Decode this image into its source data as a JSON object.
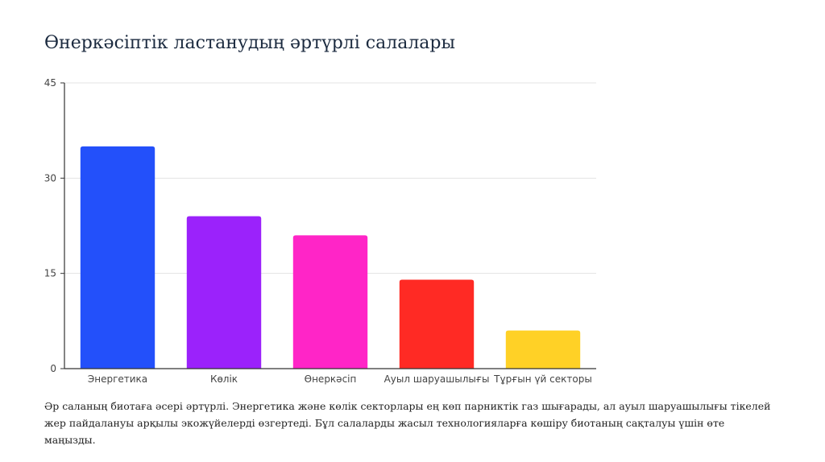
{
  "slide": {
    "title": "Өнеркәсіптік ластанудың әртүрлі салалары",
    "caption": "Әр саланың биотаға әсері әртүрлі. Энергетика және көлік секторлары ең көп парниктік газ шығарады, ал ауыл шаруашылығы тікелей жер пайдалануы арқылы экожүйелерді өзгертеді. Бұл салаларды жасыл технологияларға көшіру биотаның сақталуы үшін өте маңызды."
  },
  "chart_data": {
    "type": "bar",
    "title": "",
    "xlabel": "",
    "ylabel": "",
    "categories": [
      "Энергетика",
      "Көлік",
      "Өнеркәсіп",
      "Ауыл шаруашылығы",
      "Тұрғын үй секторы"
    ],
    "values": [
      35,
      24,
      21,
      14,
      6
    ],
    "colors": [
      "#2350fa",
      "#9b22fb",
      "#ff25c7",
      "#ff2a24",
      "#ffd126"
    ],
    "ylim": [
      0,
      45
    ],
    "yticks": [
      0,
      15,
      30,
      45
    ],
    "grid": true,
    "legend": "none"
  }
}
